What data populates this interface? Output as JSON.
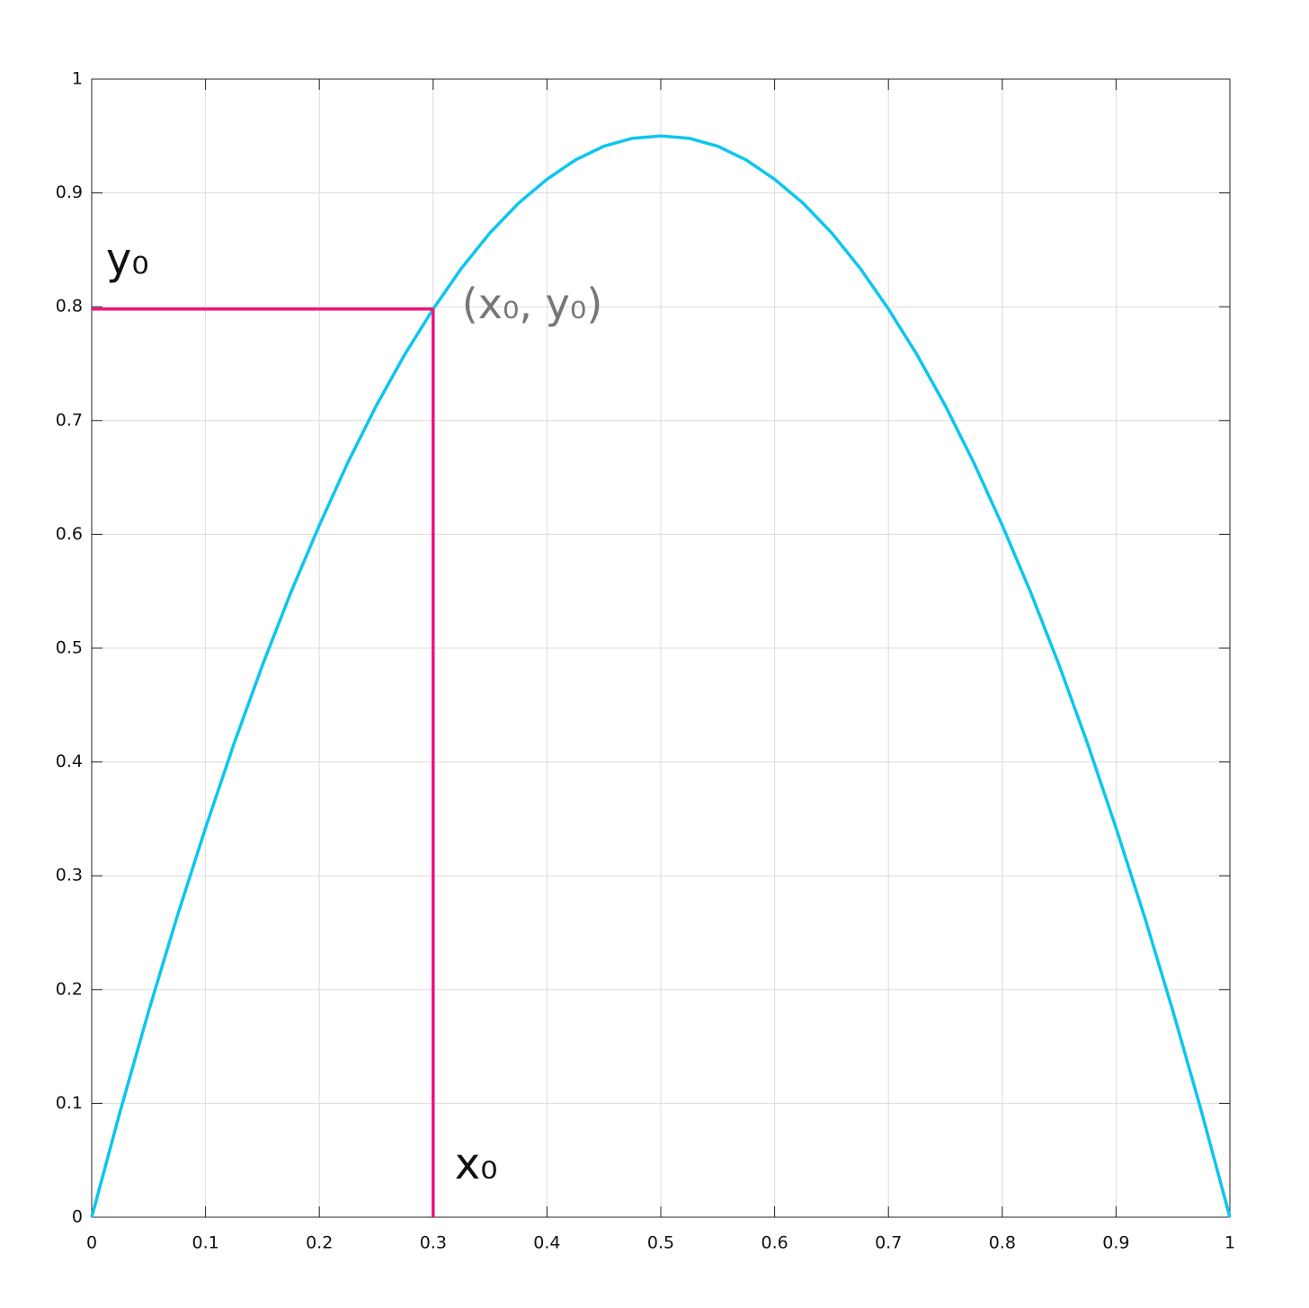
{
  "chart_data": {
    "type": "line",
    "x": [
      0,
      0.025,
      0.05,
      0.075,
      0.1,
      0.125,
      0.15,
      0.175,
      0.2,
      0.225,
      0.25,
      0.275,
      0.3,
      0.325,
      0.35,
      0.375,
      0.4,
      0.425,
      0.45,
      0.475,
      0.5,
      0.525,
      0.55,
      0.575,
      0.6,
      0.625,
      0.65,
      0.675,
      0.7,
      0.725,
      0.75,
      0.775,
      0.8,
      0.825,
      0.85,
      0.875,
      0.9,
      0.925,
      0.95,
      0.975,
      1
    ],
    "series": [
      {
        "color": "#0cc6ef",
        "values": [
          0,
          0.093,
          0.181,
          0.264,
          0.342,
          0.416,
          0.485,
          0.549,
          0.608,
          0.663,
          0.713,
          0.758,
          0.798,
          0.834,
          0.865,
          0.891,
          0.912,
          0.929,
          0.941,
          0.948,
          0.95,
          0.948,
          0.941,
          0.929,
          0.912,
          0.891,
          0.865,
          0.834,
          0.798,
          0.758,
          0.713,
          0.663,
          0.608,
          0.549,
          0.485,
          0.416,
          0.342,
          0.264,
          0.181,
          0.093,
          0
        ]
      }
    ],
    "marker": {
      "x": 0.3,
      "y": 0.798,
      "color": "#f0147f",
      "x_label": "x₀",
      "y_label": "y₀",
      "point_label": "(x₀, y₀)"
    },
    "xlim": [
      0,
      1
    ],
    "ylim": [
      0,
      1
    ],
    "xticks": [
      0,
      0.1,
      0.2,
      0.3,
      0.4,
      0.5,
      0.6,
      0.7,
      0.8,
      0.9,
      1
    ],
    "yticks": [
      0,
      0.1,
      0.2,
      0.3,
      0.4,
      0.5,
      0.6,
      0.7,
      0.8,
      0.9,
      1
    ],
    "grid": true
  }
}
